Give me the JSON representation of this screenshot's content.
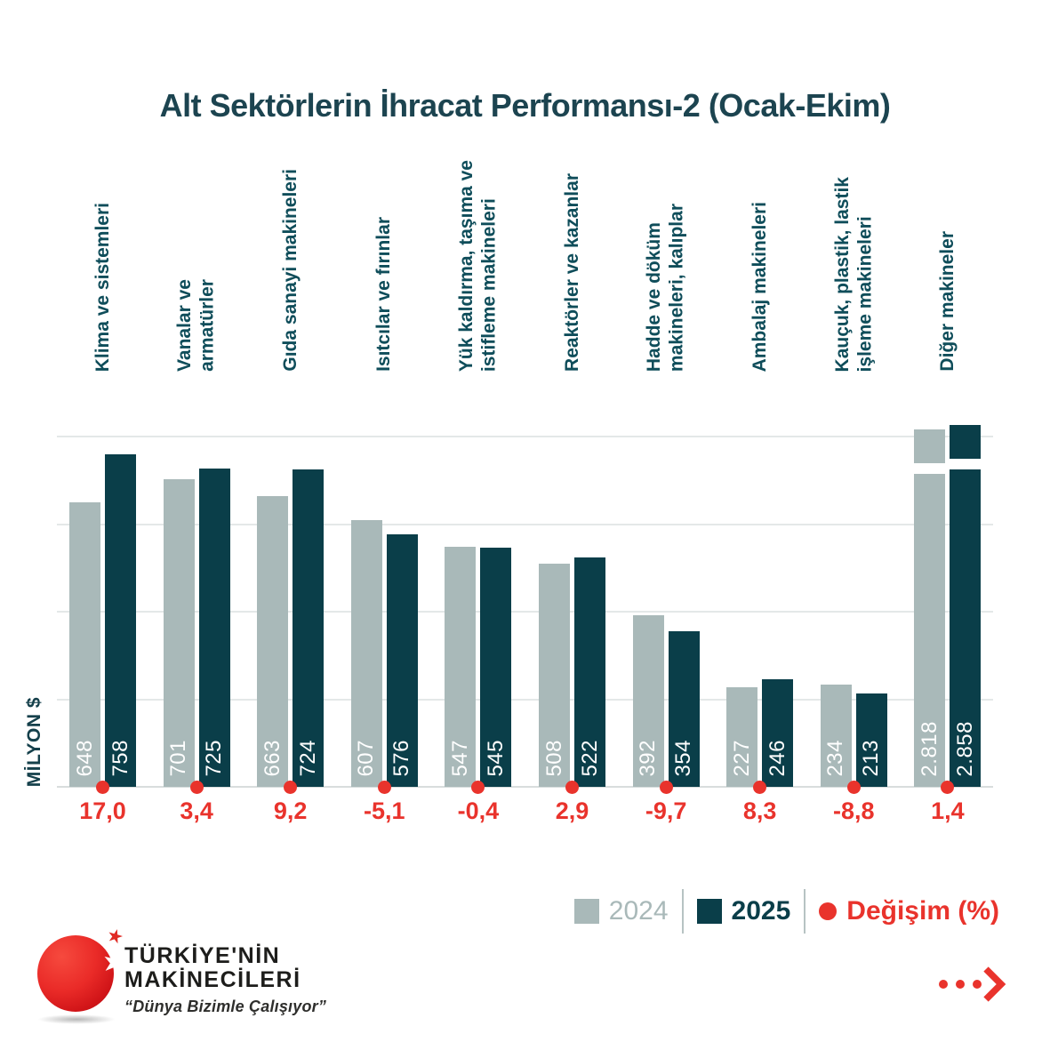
{
  "chart_data": {
    "type": "bar",
    "title": "Alt Sektörlerin İhracat Performansı-2 (Ocak-Ekim)",
    "ylabel": "MİLYON $",
    "ylim": [
      0,
      800
    ],
    "gridline_step": 200,
    "grid": "horizontal lines every 200, y-axis unlabeled",
    "axis_break_category": "Diğer makineler",
    "categories": [
      "Klima ve sistemleri",
      "Vanalar ve\narmatürler",
      "Gıda sanayi makineleri",
      "Isıtcılar ve fırınlar",
      "Yük kaldırma, taşıma ve\nistifleme makineleri",
      "Reaktörler ve kazanlar",
      "Hadde ve döküm\nmakineleri, kalıplar",
      "Ambalaj makineleri",
      "Kauçuk, plastik, lastik\nişleme makineleri",
      "Diğer makineler"
    ],
    "series": [
      {
        "name": "2024",
        "color": "#a9b9b9",
        "values": [
          648,
          701,
          663,
          607,
          547,
          508,
          392,
          227,
          234,
          2818
        ],
        "labels": [
          "648",
          "701",
          "663",
          "607",
          "547",
          "508",
          "392",
          "227",
          "234",
          "2.818"
        ]
      },
      {
        "name": "2025",
        "color": "#0a3e49",
        "values": [
          758,
          725,
          724,
          576,
          545,
          522,
          354,
          246,
          213,
          2858
        ],
        "labels": [
          "758",
          "725",
          "724",
          "576",
          "545",
          "522",
          "354",
          "246",
          "213",
          "2.858"
        ]
      }
    ],
    "change_series": {
      "name": "Değişim (%)",
      "color": "#e9332c",
      "values": [
        "17,0",
        "3,4",
        "9,2",
        "-5,1",
        "-0,4",
        "2,9",
        "-9,7",
        "8,3",
        "-8,8",
        "1,4"
      ]
    },
    "legend_position": "bottom-right"
  },
  "legend": {
    "items": [
      {
        "label": "2024"
      },
      {
        "label": "2025"
      },
      {
        "label": "Değişim (%)"
      }
    ]
  },
  "logo": {
    "name_line1": "TÜRKİYE'NİN",
    "name_line2": "MAKİNECİLERİ",
    "tagline": "“Dünya Bizimle Çalışıyor”",
    "star_icon": "star-icon"
  },
  "icons": {
    "forward_arrow": "dotted-forward-arrow-icon"
  }
}
